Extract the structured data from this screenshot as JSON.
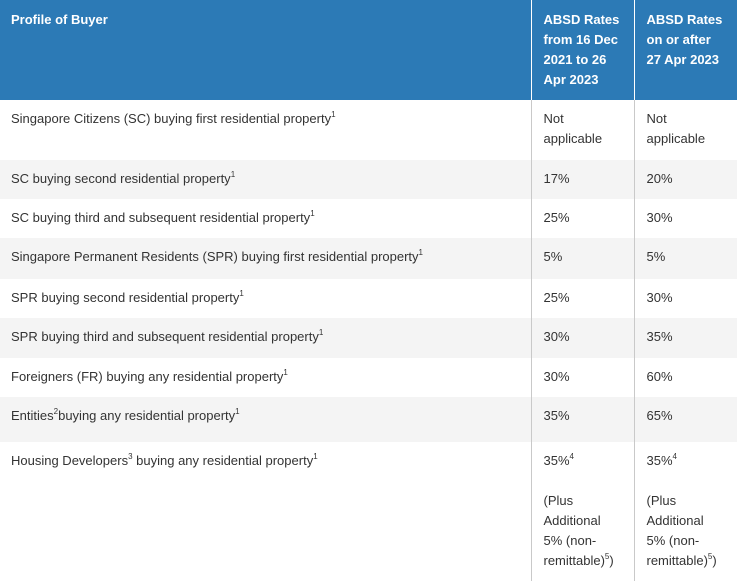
{
  "table": {
    "headers": {
      "profile": "Profile of Buyer",
      "rate_2021": [
        "ABSD Rates",
        "from 16 Dec",
        "2021 to 26",
        "Apr 2023"
      ],
      "rate_2023": [
        "ABSD Rates",
        "on or after",
        "27 Apr 2023"
      ]
    },
    "rows": [
      {
        "profile": "Singapore Citizens (SC) buying first residential property",
        "note": "1",
        "rate_2021": [
          "Not",
          "applicable"
        ],
        "rate_2023": [
          "Not",
          "applicable"
        ]
      },
      {
        "profile": "SC buying second residential property",
        "note": "1",
        "rate_2021": [
          "17%"
        ],
        "rate_2023": [
          "20%"
        ]
      },
      {
        "profile": "SC buying third and subsequent residential property",
        "note": "1",
        "rate_2021": [
          "25%"
        ],
        "rate_2023": [
          "30%"
        ]
      },
      {
        "profile": "Singapore Permanent Residents (SPR) buying first residential property",
        "note": "1",
        "rate_2021": [
          "5%"
        ],
        "rate_2023": [
          "5%"
        ]
      },
      {
        "profile": "SPR buying second residential property",
        "note": "1",
        "rate_2021": [
          "25%"
        ],
        "rate_2023": [
          "30%"
        ]
      },
      {
        "profile": "SPR buying third and subsequent residential property",
        "note": "1",
        "rate_2021": [
          "30%"
        ],
        "rate_2023": [
          "35%"
        ]
      },
      {
        "profile": "Foreigners (FR) buying any residential property",
        "note": "1",
        "rate_2021": [
          "30%"
        ],
        "rate_2023": [
          "60%"
        ]
      },
      {
        "profile_a": "Entities",
        "profile_a_note": "2",
        "profile_b": "buying any residential property",
        "note": "1",
        "rate_2021": [
          "35%"
        ],
        "rate_2023": [
          "65%"
        ]
      },
      {
        "profile_a": "Housing Developers",
        "profile_a_note": "3",
        "profile_b": " buying any residential property",
        "note": "1",
        "rate_2021": {
          "main": "35%",
          "main_note": "4",
          "extra": [
            "(Plus",
            "Additional",
            "5% (non-",
            "remittable)"
          ],
          "extra_note": "5",
          "close": ")"
        },
        "rate_2023": {
          "main": "35%",
          "main_note": "4",
          "extra": [
            "(Plus",
            "Additional",
            "5% (non-",
            "remittable)"
          ],
          "extra_note": "5",
          "close": ")"
        }
      }
    ]
  }
}
